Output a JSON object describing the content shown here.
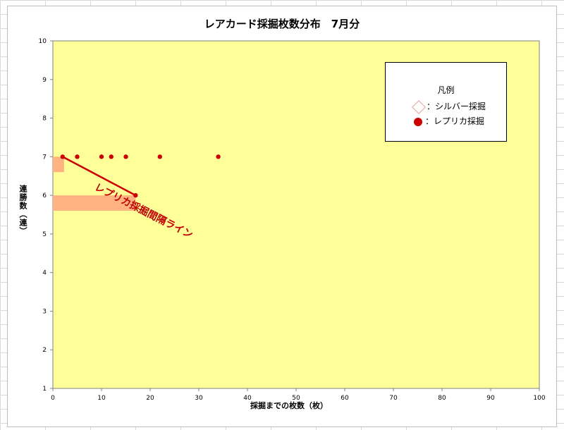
{
  "chart_data": {
    "type": "scatter",
    "title": "レアカード採掘枚数分布　7月分",
    "xlabel": "採掘までの枚数（枚）",
    "ylabel": "連勝数（連）",
    "xlim": [
      0,
      100
    ],
    "ylim": [
      1,
      10
    ],
    "x_ticks": [
      0,
      10,
      20,
      30,
      40,
      50,
      60,
      70,
      80,
      90,
      100
    ],
    "y_ticks": [
      1,
      2,
      3,
      4,
      5,
      6,
      7,
      8,
      9,
      10
    ],
    "grid": false,
    "plot_background": "#ffff99",
    "legend": {
      "title": "凡例",
      "position": "top-right",
      "entries": [
        {
          "label": "：シルバー採掘",
          "marker": "diamond",
          "color": "#e0a0a0"
        },
        {
          "label": "：レプリカ採掘",
          "marker": "circle",
          "color": "#cc0000"
        }
      ]
    },
    "series": [
      {
        "name": "：シルバー採掘",
        "marker": "diamond",
        "color": "#e0a0a0",
        "points": []
      },
      {
        "name": "：レプリカ採掘",
        "marker": "circle",
        "color": "#cc0000",
        "points": [
          [
            2,
            7
          ],
          [
            5,
            7
          ],
          [
            10,
            7
          ],
          [
            12,
            7
          ],
          [
            15,
            7
          ],
          [
            22,
            7
          ],
          [
            34,
            7
          ],
          [
            17,
            6
          ]
        ]
      }
    ],
    "trend_line": {
      "from": [
        2,
        7
      ],
      "to": [
        17,
        6
      ],
      "color": "#cc0000"
    },
    "highlight_bands": [
      {
        "x": [
          0,
          2.3
        ],
        "y": [
          6.6,
          7.0
        ],
        "color": "#ffb380"
      },
      {
        "x": [
          0,
          17
        ],
        "y": [
          5.6,
          6.0
        ],
        "color": "#ffb380"
      }
    ],
    "annotation": {
      "text": "レプリカ採掘間隔ライン",
      "color": "#c00000"
    }
  }
}
